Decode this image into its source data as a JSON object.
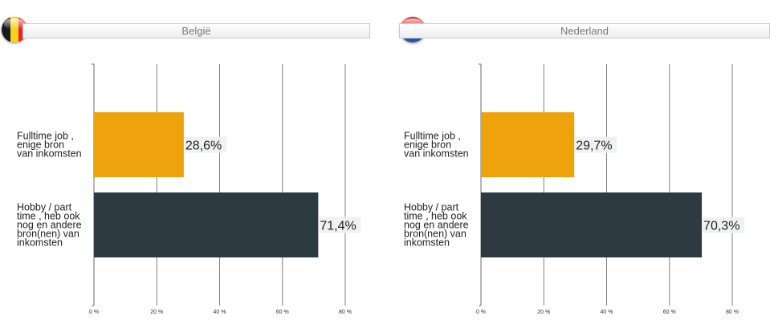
{
  "colors": {
    "be_black": "#1a1a1a",
    "be_yellow": "#f7d21c",
    "be_red": "#e8232c",
    "nl_red": "#d7262b",
    "nl_white": "#ffffff",
    "nl_blue": "#2f52a3"
  },
  "chart_data": [
    {
      "type": "bar",
      "orientation": "horizontal",
      "title": "België",
      "flag": "belgium-flag-icon",
      "categories": [
        "Fulltime job , enige bron van inkomsten",
        "Hobby / part time , heb ook nog en andere bron(nen) van inkomsten"
      ],
      "category_lines": [
        [
          "Fulltime job ,",
          "enige bron",
          "van inkomsten"
        ],
        [
          "Hobby / part",
          "time , heb ook",
          "nog en andere",
          "bron(nen) van",
          "inkomsten"
        ]
      ],
      "values": [
        28.6,
        71.4
      ],
      "value_labels": [
        "28,6%",
        "71,4%"
      ],
      "bar_colors": [
        "#eea20b",
        "#2e3a41"
      ],
      "xlim": [
        0,
        80
      ],
      "x_ticks": [
        0,
        20,
        40,
        60,
        80
      ],
      "x_tick_labels": [
        "0 %",
        "20 %",
        "40 %",
        "60 %",
        "80 %"
      ],
      "grid": true,
      "xlabel": "",
      "ylabel": ""
    },
    {
      "type": "bar",
      "orientation": "horizontal",
      "title": "Nederland",
      "flag": "netherlands-flag-icon",
      "categories": [
        "Fulltime job , enige bron van inkomsten",
        "Hobby / part time , heb ook nog en andere bron(nen) van inkomsten"
      ],
      "category_lines": [
        [
          "Fulltime job ,",
          "enige bron",
          "van inkomsten"
        ],
        [
          "Hobby / part",
          "time , heb ook",
          "nog en andere",
          "bron(nen) van",
          "inkomsten"
        ]
      ],
      "values": [
        29.7,
        70.3
      ],
      "value_labels": [
        "29,7%",
        "70,3%"
      ],
      "bar_colors": [
        "#eea20b",
        "#2e3a41"
      ],
      "xlim": [
        0,
        80
      ],
      "x_ticks": [
        0,
        20,
        40,
        60,
        80
      ],
      "x_tick_labels": [
        "0 %",
        "20 %",
        "40 %",
        "60 %",
        "80 %"
      ],
      "grid": true,
      "xlabel": "",
      "ylabel": ""
    }
  ]
}
